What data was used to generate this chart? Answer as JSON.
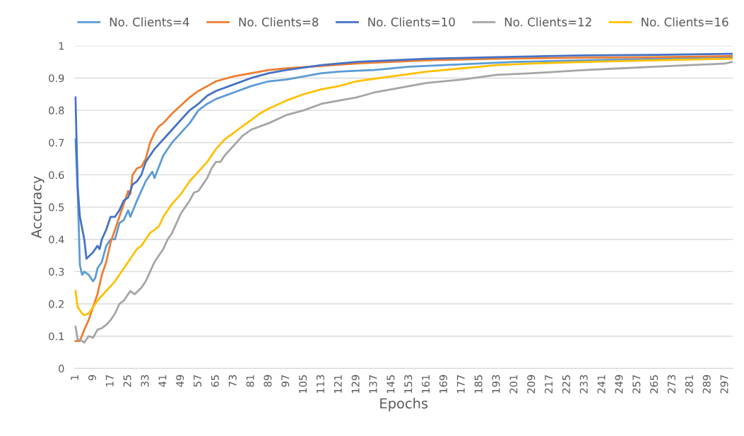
{
  "chart_data": {
    "type": "line",
    "xlabel": "Epochs",
    "ylabel": "Accuracy",
    "xlim": [
      0.5,
      300.5
    ],
    "xticks": [
      1,
      9,
      17,
      25,
      33,
      41,
      49,
      57,
      65,
      73,
      81,
      89,
      97,
      105,
      113,
      121,
      129,
      137,
      145,
      153,
      161,
      169,
      177,
      185,
      193,
      201,
      209,
      217,
      225,
      233,
      241,
      249,
      257,
      265,
      273,
      281,
      289,
      297
    ],
    "ylim": [
      0,
      1
    ],
    "yticks": [
      0,
      0.1,
      0.2,
      0.3,
      0.4,
      0.5,
      0.6,
      0.7,
      0.8,
      0.9,
      1
    ],
    "grid": "y",
    "legend": "top",
    "marker": "none",
    "line_style": "solid",
    "series": [
      {
        "name": "No. Clients=4",
        "color": "#5b9bd5",
        "x": [
          1,
          2,
          3,
          4,
          5,
          7,
          9,
          10,
          11,
          13,
          15,
          17,
          19,
          21,
          23,
          25,
          26,
          29,
          33,
          36,
          37,
          41,
          45,
          49,
          53,
          57,
          61,
          65,
          73,
          81,
          89,
          97,
          105,
          113,
          121,
          137,
          153,
          169,
          185,
          201,
          233,
          265,
          297,
          300
        ],
        "values": [
          0.71,
          0.55,
          0.32,
          0.29,
          0.3,
          0.29,
          0.27,
          0.28,
          0.31,
          0.33,
          0.38,
          0.4,
          0.4,
          0.45,
          0.46,
          0.49,
          0.47,
          0.52,
          0.58,
          0.61,
          0.59,
          0.66,
          0.7,
          0.73,
          0.76,
          0.8,
          0.82,
          0.835,
          0.855,
          0.875,
          0.89,
          0.895,
          0.905,
          0.915,
          0.92,
          0.925,
          0.935,
          0.94,
          0.945,
          0.95,
          0.955,
          0.96,
          0.965,
          0.965
        ]
      },
      {
        "name": "No. Clients=8",
        "color": "#ed7d31",
        "x": [
          1,
          3,
          5,
          7,
          9,
          11,
          13,
          15,
          17,
          19,
          21,
          23,
          25,
          26,
          27,
          29,
          31,
          33,
          35,
          37,
          39,
          41,
          45,
          49,
          53,
          57,
          61,
          65,
          73,
          81,
          89,
          97,
          129,
          161,
          193,
          233,
          265,
          300
        ],
        "values": [
          0.085,
          0.085,
          0.12,
          0.15,
          0.19,
          0.23,
          0.29,
          0.33,
          0.39,
          0.43,
          0.47,
          0.51,
          0.55,
          0.54,
          0.6,
          0.62,
          0.625,
          0.65,
          0.7,
          0.73,
          0.75,
          0.76,
          0.79,
          0.815,
          0.84,
          0.86,
          0.875,
          0.89,
          0.905,
          0.915,
          0.925,
          0.93,
          0.945,
          0.955,
          0.96,
          0.963,
          0.965,
          0.968
        ]
      },
      {
        "name": "No. Clients=10",
        "color": "#4472c4",
        "x": [
          1,
          2,
          3,
          5,
          6,
          9,
          11,
          12,
          13,
          15,
          17,
          19,
          21,
          23,
          25,
          27,
          29,
          31,
          33,
          35,
          37,
          41,
          45,
          49,
          53,
          57,
          61,
          65,
          73,
          81,
          89,
          97,
          113,
          129,
          145,
          161,
          193,
          233,
          265,
          300
        ],
        "values": [
          0.84,
          0.56,
          0.47,
          0.4,
          0.34,
          0.36,
          0.38,
          0.37,
          0.4,
          0.43,
          0.47,
          0.47,
          0.49,
          0.52,
          0.53,
          0.57,
          0.58,
          0.6,
          0.64,
          0.66,
          0.68,
          0.71,
          0.74,
          0.77,
          0.8,
          0.82,
          0.845,
          0.86,
          0.88,
          0.9,
          0.915,
          0.925,
          0.94,
          0.95,
          0.955,
          0.96,
          0.965,
          0.97,
          0.972,
          0.975
        ]
      },
      {
        "name": "No. Clients=12",
        "color": "#a5a5a5",
        "x": [
          1,
          2,
          4,
          5,
          7,
          9,
          11,
          13,
          15,
          17,
          19,
          21,
          23,
          25,
          26,
          28,
          31,
          33,
          35,
          37,
          39,
          41,
          43,
          45,
          47,
          49,
          51,
          53,
          55,
          57,
          59,
          61,
          63,
          65,
          67,
          69,
          73,
          77,
          81,
          89,
          97,
          105,
          113,
          121,
          129,
          137,
          145,
          153,
          161,
          177,
          193,
          209,
          233,
          249,
          265,
          281,
          297,
          300
        ],
        "values": [
          0.13,
          0.09,
          0.085,
          0.08,
          0.1,
          0.095,
          0.12,
          0.125,
          0.135,
          0.15,
          0.17,
          0.2,
          0.21,
          0.23,
          0.24,
          0.23,
          0.25,
          0.27,
          0.3,
          0.33,
          0.35,
          0.37,
          0.4,
          0.42,
          0.45,
          0.48,
          0.5,
          0.52,
          0.545,
          0.55,
          0.57,
          0.59,
          0.62,
          0.64,
          0.64,
          0.66,
          0.69,
          0.72,
          0.74,
          0.76,
          0.785,
          0.8,
          0.82,
          0.83,
          0.84,
          0.855,
          0.865,
          0.875,
          0.885,
          0.895,
          0.91,
          0.915,
          0.925,
          0.93,
          0.935,
          0.94,
          0.945,
          0.95
        ]
      },
      {
        "name": "No. Clients=16",
        "color": "#ffc000",
        "x": [
          1,
          2,
          4,
          5,
          7,
          9,
          11,
          15,
          19,
          23,
          27,
          29,
          31,
          33,
          35,
          37,
          39,
          41,
          45,
          49,
          53,
          57,
          61,
          65,
          69,
          73,
          77,
          81,
          85,
          89,
          97,
          105,
          113,
          121,
          129,
          145,
          161,
          177,
          193,
          209,
          233,
          265,
          300
        ],
        "values": [
          0.24,
          0.19,
          0.17,
          0.165,
          0.17,
          0.19,
          0.21,
          0.24,
          0.27,
          0.31,
          0.35,
          0.37,
          0.38,
          0.4,
          0.42,
          0.43,
          0.44,
          0.47,
          0.51,
          0.54,
          0.58,
          0.61,
          0.64,
          0.68,
          0.71,
          0.73,
          0.75,
          0.77,
          0.79,
          0.805,
          0.83,
          0.85,
          0.865,
          0.875,
          0.89,
          0.905,
          0.92,
          0.93,
          0.94,
          0.945,
          0.95,
          0.955,
          0.96
        ]
      }
    ]
  }
}
